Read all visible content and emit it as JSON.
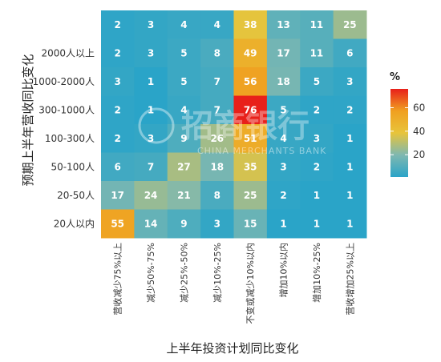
{
  "chart_data": {
    "type": "heatmap",
    "xlabel": "上半年投资计划同比变化",
    "ylabel": "预期上半年营收同比变化",
    "x_categories": [
      "营收减少75%以上",
      "减少50%-75%",
      "减少25%-50%",
      "减少10%-25%",
      "不变或减少10%以内",
      "增加10%以内",
      "增加10%-25%",
      "营收增加25%以上"
    ],
    "y_categories": [
      "",
      "2000人以上",
      "1000-2000人",
      "300-1000人",
      "100-300人",
      "50-100人",
      "20-50人",
      "20人以内"
    ],
    "values": [
      [
        2,
        3,
        4,
        4,
        38,
        13,
        11,
        25
      ],
      [
        2,
        3,
        5,
        8,
        49,
        17,
        11,
        6
      ],
      [
        3,
        1,
        5,
        7,
        56,
        18,
        5,
        3
      ],
      [
        2,
        1,
        4,
        7,
        76,
        5,
        2,
        2
      ],
      [
        2,
        3,
        9,
        26,
        51,
        4,
        3,
        1
      ],
      [
        6,
        7,
        27,
        18,
        35,
        3,
        2,
        1
      ],
      [
        17,
        24,
        21,
        8,
        25,
        2,
        1,
        1
      ],
      [
        55,
        14,
        9,
        3,
        15,
        1,
        1,
        1
      ]
    ],
    "legend": {
      "title": "%",
      "ticks": [
        20,
        40,
        60
      ],
      "range": [
        1,
        76
      ],
      "colors": [
        "#2aa4c8",
        "#7fb8b0",
        "#e8c43a",
        "#f0a020",
        "#e8201a"
      ],
      "placement": "right"
    }
  },
  "watermark": {
    "text_cn": "招商银行",
    "text_en": "CHINA MERCHANTS BANK"
  }
}
